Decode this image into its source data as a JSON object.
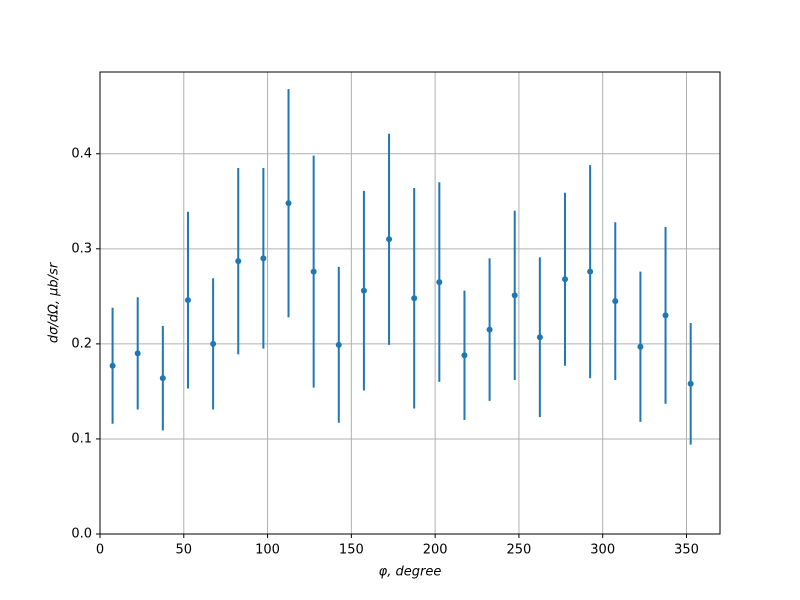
{
  "chart_data": {
    "type": "errorbar",
    "xlabel": "φ, degree",
    "ylabel": "dσ/dΩ, μb/sr",
    "color": "#1f77b4",
    "grid": true,
    "xlim": [
      0,
      370
    ],
    "xticks": [
      0,
      50,
      100,
      150,
      200,
      250,
      300,
      350
    ],
    "ylim": [
      0,
      0.486
    ],
    "yticks": [
      {
        "value": 0,
        "label": "0.0"
      },
      0.1,
      0.2,
      0.3,
      0.4
    ],
    "x": [
      7.5,
      22.5,
      37.5,
      52.5,
      67.5,
      82.5,
      97.5,
      112.5,
      127.5,
      142.5,
      157.5,
      172.5,
      187.5,
      202.5,
      217.5,
      232.5,
      247.5,
      262.5,
      277.5,
      292.5,
      307.5,
      322.5,
      337.5,
      352.5
    ],
    "values": [
      0.177,
      0.19,
      0.164,
      0.246,
      0.2,
      0.287,
      0.29,
      0.348,
      0.276,
      0.199,
      0.256,
      0.31,
      0.248,
      0.265,
      0.188,
      0.215,
      0.251,
      0.207,
      0.268,
      0.276,
      0.245,
      0.197,
      0.23,
      0.158
    ],
    "errors": [
      0.061,
      0.059,
      0.055,
      0.093,
      0.069,
      0.098,
      0.095,
      0.12,
      0.122,
      0.082,
      0.105,
      0.111,
      0.116,
      0.105,
      0.068,
      0.075,
      0.089,
      0.084,
      0.091,
      0.112,
      0.083,
      0.079,
      0.093,
      0.064
    ]
  }
}
